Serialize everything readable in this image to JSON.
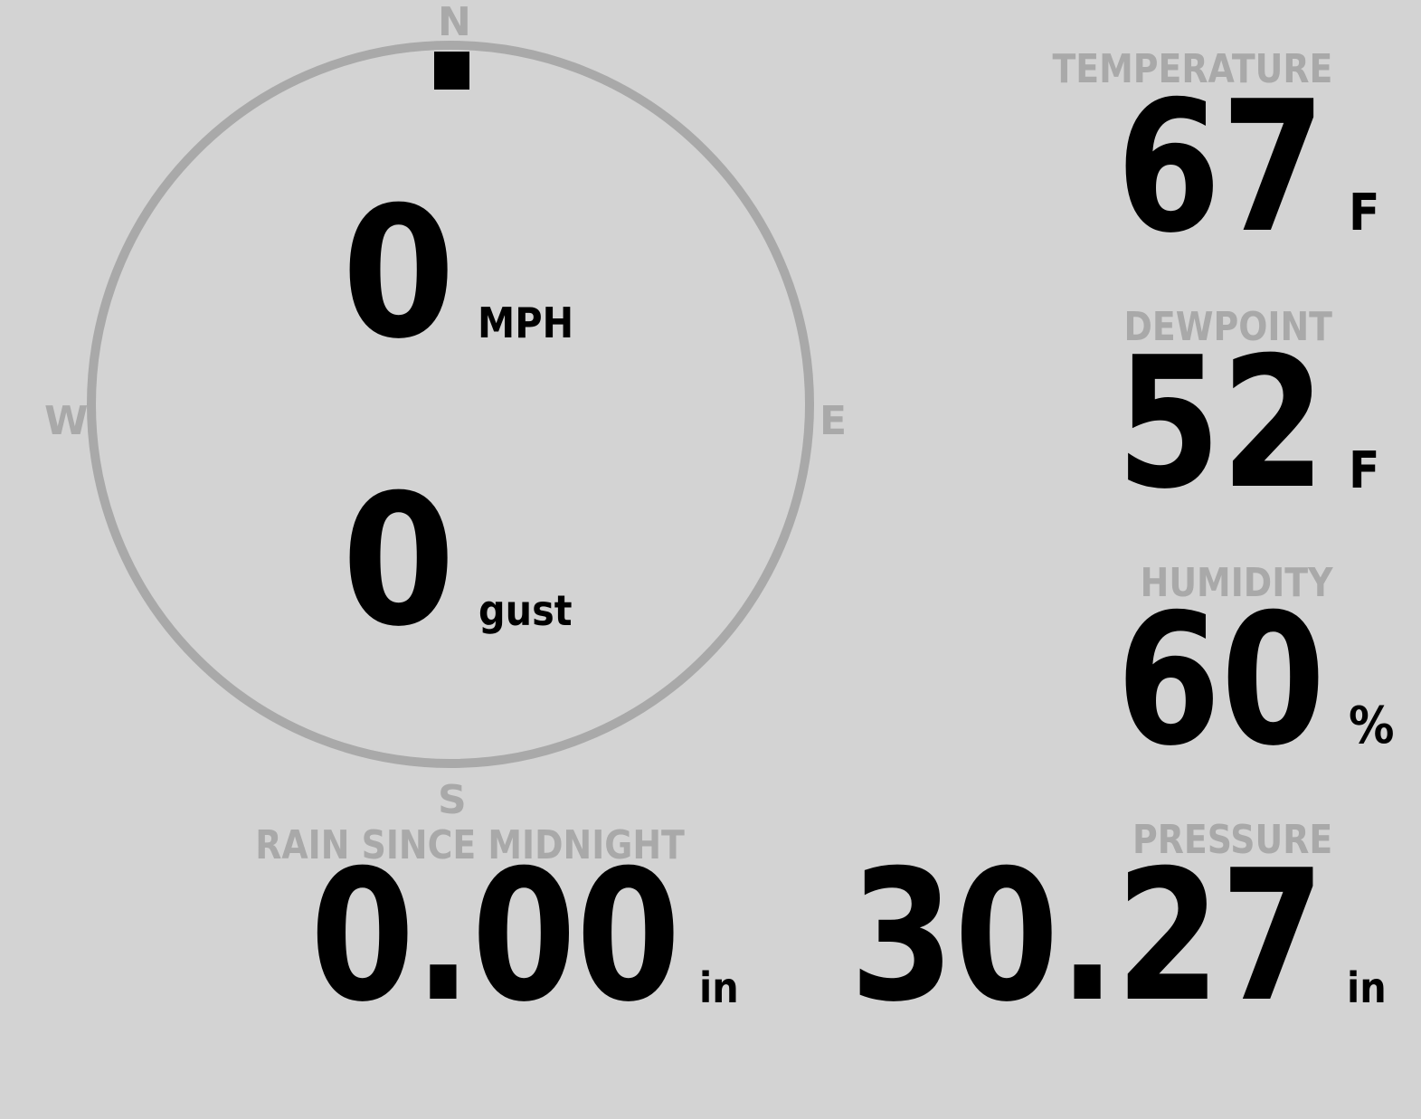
{
  "colors": {
    "background": "#d3d3d3",
    "label": "#a9a9a9",
    "value": "#000000",
    "compass_ring": "#a9a9a9",
    "direction_marker": "#000000"
  },
  "wind": {
    "cardinals": {
      "n": "N",
      "e": "E",
      "s": "S",
      "w": "W"
    },
    "direction_degrees": 0,
    "speed": "0",
    "speed_unit": "MPH",
    "gust": "0",
    "gust_unit": "gust"
  },
  "temperature": {
    "label": "TEMPERATURE",
    "value": "67",
    "unit": "F"
  },
  "dewpoint": {
    "label": "DEWPOINT",
    "value": "52",
    "unit": "F"
  },
  "humidity": {
    "label": "HUMIDITY",
    "value": "60",
    "unit": "%"
  },
  "rain": {
    "label": "RAIN SINCE MIDNIGHT",
    "value": "0.00",
    "unit": "in"
  },
  "pressure": {
    "label": "PRESSURE",
    "value": "30.27",
    "unit": "in"
  }
}
